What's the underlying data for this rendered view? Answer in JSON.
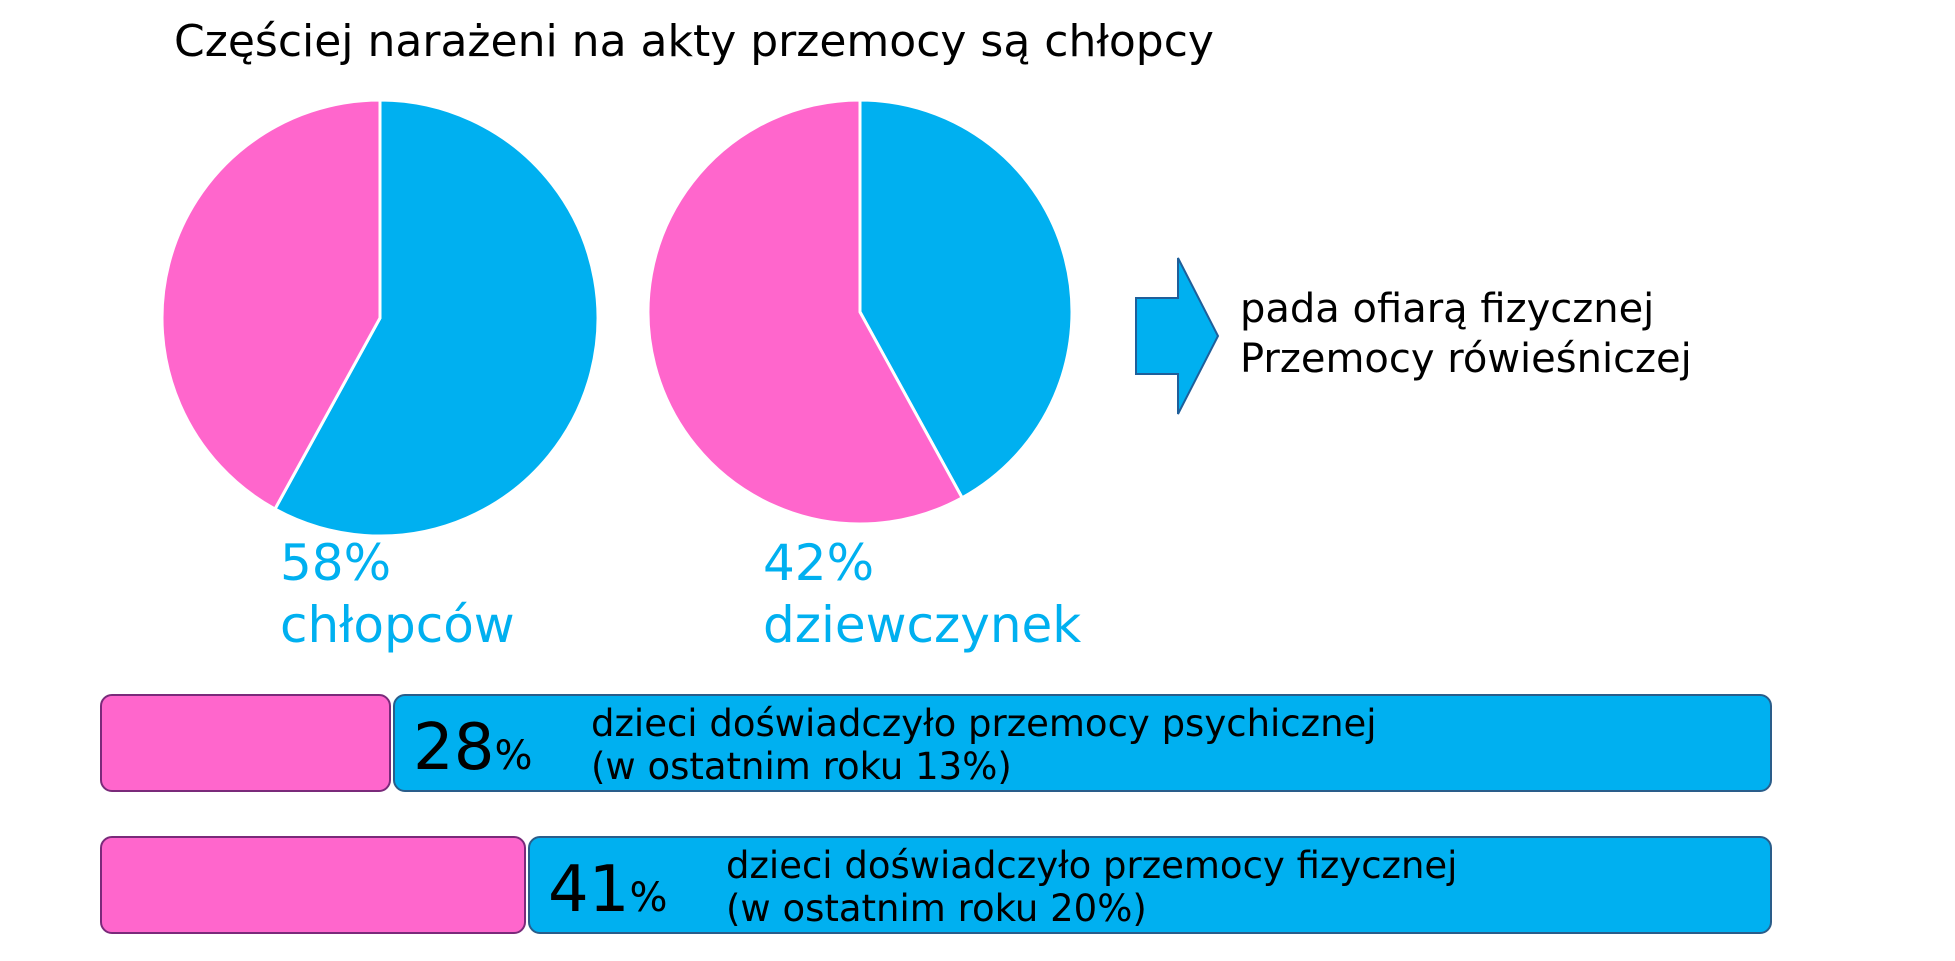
{
  "title": "Częściej narażeni na akty przemocy są chłopcy",
  "colors": {
    "pink": "#ff66cc",
    "blue": "#00b0f0",
    "text": "#000000"
  },
  "chart_data": [
    {
      "type": "pie",
      "slices": [
        {
          "name": "chłopcy",
          "value": 58,
          "color": "#00b0f0"
        },
        {
          "name": "dziewczynki",
          "value": 42,
          "color": "#ff66cc"
        }
      ],
      "label_value": "58%",
      "label_text": "chłopców"
    },
    {
      "type": "pie",
      "slices": [
        {
          "name": "dziewczynki",
          "value": 42,
          "color": "#00b0f0"
        },
        {
          "name": "chłopcy",
          "value": 58,
          "color": "#ff66cc"
        }
      ],
      "label_value": "42%",
      "label_text": "dziewczynek"
    },
    {
      "type": "bar",
      "orientation": "horizontal-stacked",
      "rows": [
        {
          "value": 28,
          "number": "28",
          "unit": "%",
          "line1": "dzieci doświadczyło przemocy psychicznej",
          "line2": "(w ostatnim roku 13%)"
        },
        {
          "value": 41,
          "number": "41",
          "unit": "%",
          "line1": "dzieci doświadczyło przemocy fizycznej",
          "line2": "(w ostatnim roku 20%)"
        }
      ]
    }
  ],
  "conclusion": {
    "line1": "pada ofiarą fizycznej",
    "line2": "Przemocy rówieśniczej"
  },
  "arrow_icon": "right-arrow-icon"
}
